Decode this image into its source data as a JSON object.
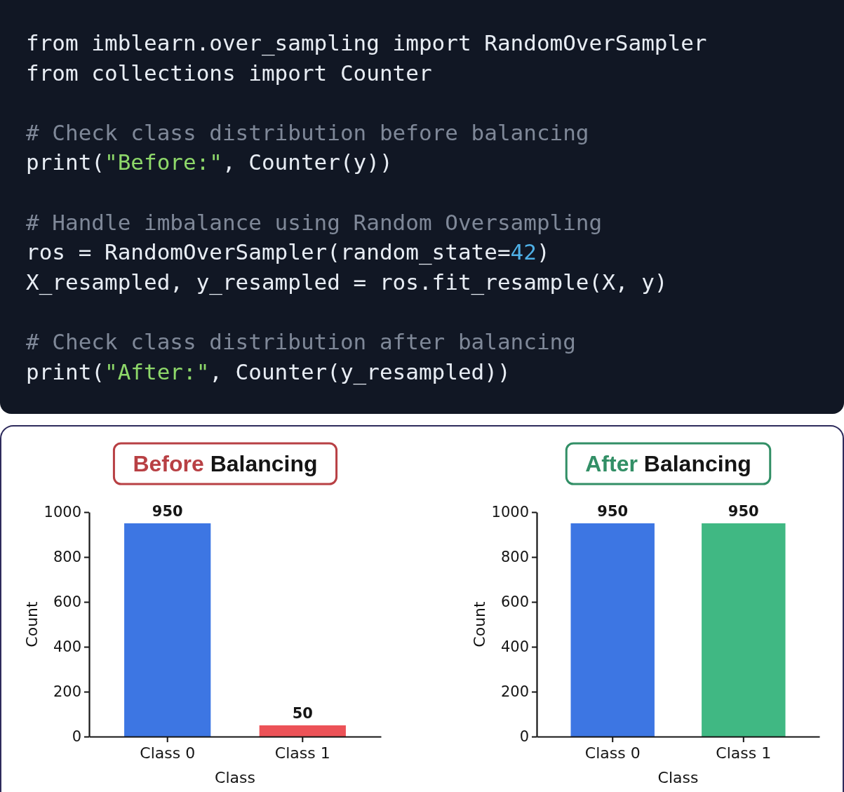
{
  "chart_data": [
    {
      "type": "other",
      "annotations": [
        "from imblearn.over_sampling import RandomOverSampler\nfrom collections import Counter",
        "# Check class distribution before balancing\nprint(\"Before:\", Counter(y))",
        "# Handle imbalance using Random Oversampling\nros = RandomOverSampler(random_state=42)\nX_resampled, y_resampled = ros.fit_resample(X, y)",
        "# Check class distribution after balancing\nprint(\"After:\", Counter(y_resampled))"
      ]
    },
    {
      "type": "bar",
      "title": "Before Balancing",
      "categories": [
        "Class 0",
        "Class 1"
      ],
      "values": [
        950,
        50
      ],
      "colors": [
        "#3d76e3",
        "#ec5257"
      ],
      "xlabel": "Class",
      "ylabel": "Count",
      "ylim": [
        0,
        1000
      ],
      "yticks": [
        0,
        200,
        400,
        600,
        800,
        1000
      ],
      "data_labels": true
    },
    {
      "type": "bar",
      "title": "After Balancing",
      "categories": [
        "Class 0",
        "Class 1"
      ],
      "values": [
        950,
        950
      ],
      "colors": [
        "#3d76e3",
        "#40b883"
      ],
      "xlabel": "Class",
      "ylabel": "Count",
      "ylim": [
        0,
        1000
      ],
      "yticks": [
        0,
        200,
        400,
        600,
        800,
        1000
      ],
      "data_labels": true
    }
  ]
}
